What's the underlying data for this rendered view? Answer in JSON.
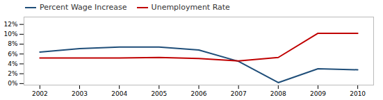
{
  "chart_data": {
    "type": "line",
    "x": [
      2002,
      2003,
      2004,
      2005,
      2006,
      2007,
      2008,
      2009,
      2010
    ],
    "series": [
      {
        "name": "Percent Wage Increase",
        "color": "#1f4e79",
        "values": [
          6.4,
          7.1,
          7.4,
          7.4,
          6.8,
          4.5,
          0.2,
          3.0,
          2.8
        ]
      },
      {
        "name": "Unemployment Rate",
        "color": "#c00000",
        "values": [
          5.2,
          5.2,
          5.2,
          5.3,
          5.1,
          4.6,
          5.3,
          10.2,
          10.2
        ]
      }
    ],
    "xlim": [
      2001.6,
      2010.4
    ],
    "xticks": [
      2002,
      2003,
      2004,
      2005,
      2006,
      2007,
      2008,
      2009,
      2010
    ],
    "ylim": [
      -0.3,
      13.5
    ],
    "yticks": [
      {
        "value": 0,
        "label": "0%"
      },
      {
        "value": 2,
        "label": "2%"
      },
      {
        "value": 4,
        "label": "4%"
      },
      {
        "value": 6,
        "label": "6%"
      },
      {
        "value": 8,
        "label": "8%"
      },
      {
        "value": 10,
        "label": "10%"
      },
      {
        "value": 12,
        "label": "12%"
      }
    ],
    "grid": false,
    "legend": "upper left"
  }
}
